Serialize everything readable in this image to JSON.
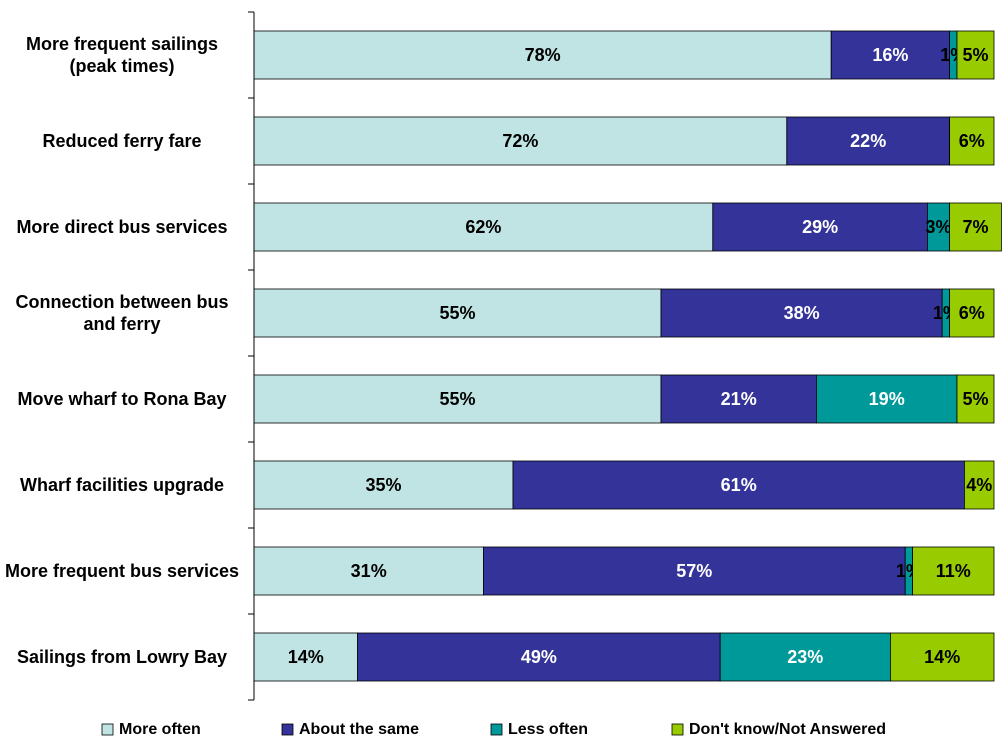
{
  "chart_data": {
    "type": "stacked-bar-horizontal",
    "categories": [
      "More frequent sailings (peak times)",
      "Reduced ferry fare",
      "More direct bus services",
      "Connection between bus and ferry",
      "Move wharf to Rona Bay",
      "Wharf facilities upgrade",
      "More frequent bus services",
      "Sailings from Lowry Bay"
    ],
    "xlim": [
      0,
      100
    ],
    "legend": "bottom",
    "series": [
      {
        "name": "More often",
        "color": "#c0e4e4",
        "values": [
          78,
          72,
          62,
          55,
          55,
          35,
          31,
          14
        ],
        "value_labels": [
          "78%",
          "72%",
          "62%",
          "55%",
          "55%",
          "35%",
          "31%",
          "14%"
        ]
      },
      {
        "name": "About the same",
        "color": "#333399",
        "values": [
          16,
          22,
          29,
          38,
          21,
          61,
          57,
          49
        ],
        "value_labels": [
          "16%",
          "22%",
          "29%",
          "38%",
          "21%",
          "61%",
          "57%",
          "49%"
        ]
      },
      {
        "name": "Less often",
        "color": "#009999",
        "values": [
          1,
          null,
          3,
          1,
          19,
          null,
          1,
          23
        ],
        "value_labels": [
          "1%",
          null,
          "3%",
          "1%",
          "19%",
          null,
          "1%",
          "23%"
        ]
      },
      {
        "name": "Don't know/Not Answered",
        "color": "#99cc00",
        "values": [
          5,
          6,
          7,
          6,
          5,
          4,
          11,
          14
        ],
        "value_labels": [
          "5%",
          "6%",
          "7%",
          "6%",
          "5%",
          "4%",
          "11%",
          "14%"
        ]
      }
    ]
  }
}
